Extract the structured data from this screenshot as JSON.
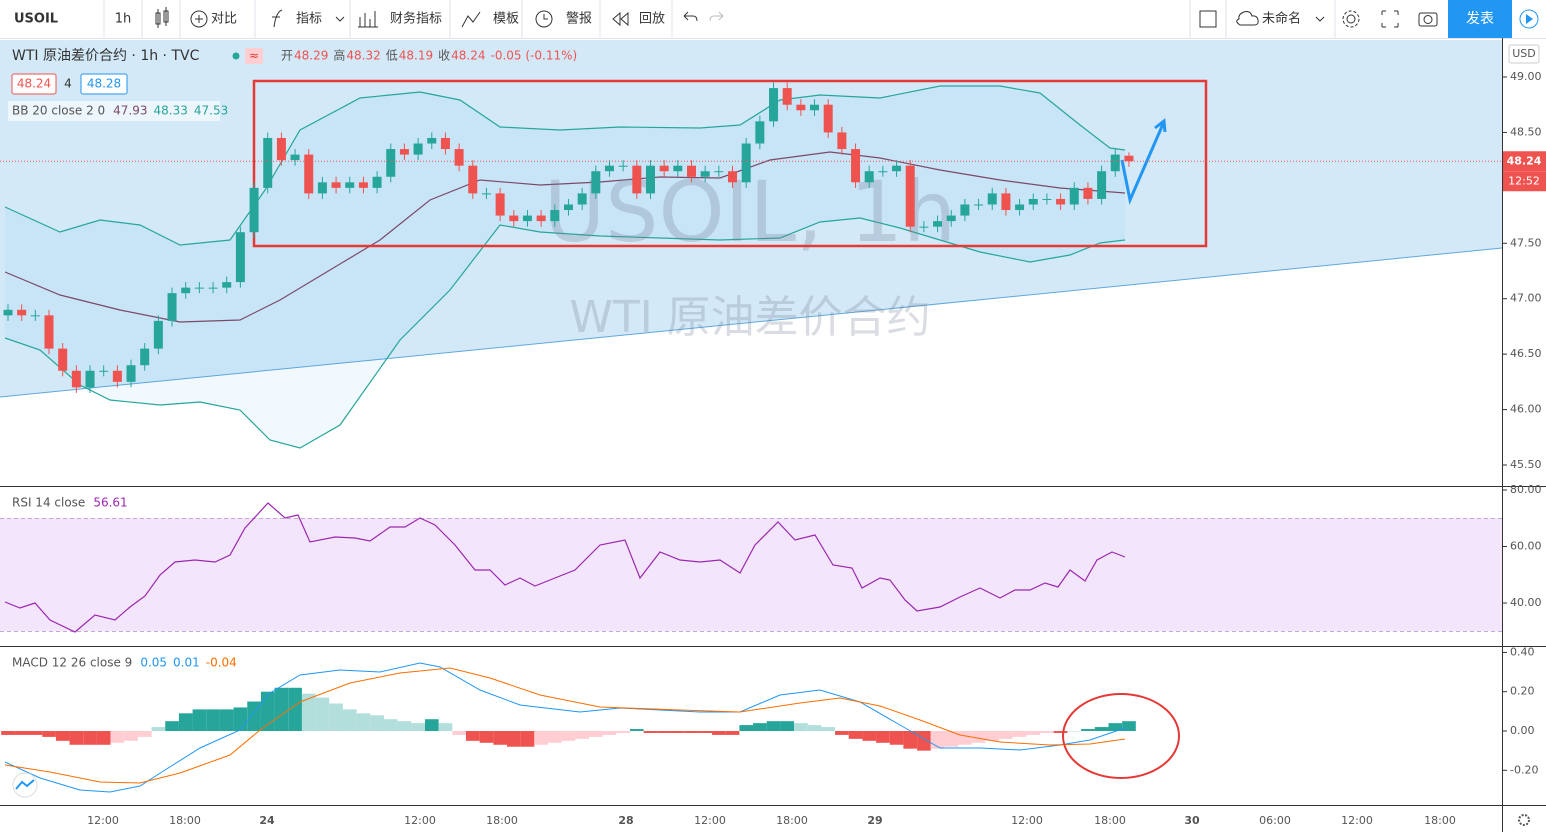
{
  "toolbar": {
    "symbol": "USOIL",
    "interval": "1h",
    "buttons": [
      "对比",
      "指标",
      "财务指标",
      "模板",
      "警报",
      "回放"
    ],
    "layout_name": "未命名",
    "publish": "发表"
  },
  "legend": {
    "title": "WTI 原油差价合约 · 1h · TVC",
    "ohlc": [
      {
        "label": "开",
        "value": 48.29
      },
      {
        "label": "高",
        "value": 48.32
      },
      {
        "label": "低",
        "value": 48.19
      },
      {
        "label": "收",
        "value": 48.24
      }
    ],
    "change": "-0.05 (-0.11%)",
    "bid": 48.24,
    "spread": 4,
    "ask": 48.28,
    "bb": {
      "name": "BB 20 close 2 0",
      "values": [
        47.93,
        48.33,
        47.53
      ]
    },
    "rsi": {
      "name": "RSI 14 close",
      "value": 56.61
    },
    "macd": {
      "name": "MACD 12 26 close 9",
      "values": [
        0.05,
        0.01,
        -0.04
      ]
    }
  },
  "chart": {
    "type": "candlestick",
    "open": [
      46.85,
      46.9,
      46.85,
      46.85,
      46.55,
      46.35,
      46.2,
      46.35,
      46.35,
      46.25,
      46.4,
      46.55,
      46.8,
      47.05,
      47.1,
      47.1,
      47.1,
      47.15,
      47.6,
      48.0,
      48.45,
      48.25,
      48.3,
      47.95,
      48.05,
      48.0,
      48.05,
      48.0,
      48.1,
      48.35,
      48.3,
      48.4,
      48.45,
      48.35,
      48.2,
      47.95,
      47.95,
      47.75,
      47.7,
      47.75,
      47.7,
      47.8,
      47.85,
      47.95,
      48.15,
      48.2,
      48.2,
      47.95,
      48.2,
      48.15,
      48.2,
      48.1,
      48.15,
      48.15,
      48.05,
      48.4,
      48.6,
      48.9,
      48.75,
      48.7,
      48.75,
      48.5,
      48.35,
      48.05,
      48.15,
      48.15,
      48.2,
      47.65,
      47.65,
      47.7,
      47.75,
      47.85,
      47.85,
      47.95,
      47.8,
      47.85,
      47.9,
      47.9,
      47.85,
      48.0,
      47.9,
      48.15,
      48.29
    ],
    "high": [
      46.95,
      46.95,
      46.9,
      46.9,
      46.6,
      46.4,
      46.4,
      46.4,
      46.4,
      46.45,
      46.6,
      46.85,
      47.1,
      47.15,
      47.15,
      47.15,
      47.2,
      47.65,
      48.05,
      48.5,
      48.5,
      48.35,
      48.35,
      48.1,
      48.1,
      48.1,
      48.1,
      48.15,
      48.4,
      48.4,
      48.45,
      48.5,
      48.5,
      48.4,
      48.25,
      48.0,
      48.0,
      47.8,
      47.8,
      47.8,
      47.85,
      47.9,
      48.0,
      48.2,
      48.25,
      48.25,
      48.25,
      48.25,
      48.25,
      48.25,
      48.25,
      48.2,
      48.2,
      48.2,
      48.45,
      48.65,
      48.95,
      48.95,
      48.8,
      48.8,
      48.8,
      48.55,
      48.4,
      48.2,
      48.2,
      48.25,
      48.25,
      47.7,
      47.75,
      47.8,
      47.9,
      47.9,
      48.0,
      48.0,
      47.9,
      47.95,
      47.95,
      47.95,
      48.05,
      48.05,
      48.2,
      48.35,
      48.32
    ],
    "low": [
      46.8,
      46.8,
      46.8,
      46.5,
      46.3,
      46.15,
      46.15,
      46.3,
      46.2,
      46.2,
      46.35,
      46.5,
      46.75,
      47.0,
      47.05,
      47.05,
      47.05,
      47.1,
      47.55,
      47.95,
      48.2,
      48.2,
      47.9,
      47.9,
      47.95,
      47.95,
      47.95,
      47.95,
      48.05,
      48.25,
      48.25,
      48.35,
      48.3,
      48.15,
      47.9,
      47.9,
      47.7,
      47.65,
      47.65,
      47.65,
      47.65,
      47.75,
      47.8,
      47.9,
      48.1,
      48.15,
      47.9,
      47.9,
      48.1,
      48.1,
      48.05,
      48.05,
      48.1,
      48.0,
      48.0,
      48.35,
      48.55,
      48.7,
      48.65,
      48.65,
      48.45,
      48.3,
      48.0,
      48.0,
      48.1,
      48.1,
      47.6,
      47.6,
      47.6,
      47.65,
      47.7,
      47.8,
      47.8,
      47.75,
      47.75,
      47.8,
      47.85,
      47.8,
      47.8,
      47.85,
      47.85,
      48.1,
      48.19
    ],
    "close": [
      46.9,
      46.85,
      46.85,
      46.55,
      46.35,
      46.2,
      46.35,
      46.35,
      46.25,
      46.4,
      46.55,
      46.8,
      47.05,
      47.1,
      47.1,
      47.1,
      47.15,
      47.6,
      48.0,
      48.45,
      48.25,
      48.3,
      47.95,
      48.05,
      48.0,
      48.05,
      48.0,
      48.1,
      48.35,
      48.3,
      48.4,
      48.45,
      48.35,
      48.2,
      47.95,
      47.95,
      47.75,
      47.7,
      47.75,
      47.7,
      47.8,
      47.85,
      47.95,
      48.15,
      48.2,
      48.2,
      47.95,
      48.2,
      48.15,
      48.2,
      48.1,
      48.15,
      48.15,
      48.05,
      48.4,
      48.6,
      48.9,
      48.75,
      48.7,
      48.75,
      48.5,
      48.35,
      48.05,
      48.15,
      48.15,
      48.2,
      47.65,
      47.65,
      47.7,
      47.75,
      47.85,
      47.85,
      47.95,
      47.8,
      47.85,
      47.9,
      47.9,
      47.85,
      48.0,
      47.9,
      48.15,
      48.3,
      48.24
    ],
    "macd_histogram": [
      -0.02,
      -0.02,
      -0.02,
      -0.03,
      -0.05,
      -0.07,
      -0.07,
      -0.07,
      -0.06,
      -0.05,
      -0.03,
      0.02,
      0.05,
      0.09,
      0.11,
      0.11,
      0.11,
      0.12,
      0.15,
      0.2,
      0.22,
      0.22,
      0.19,
      0.17,
      0.14,
      0.11,
      0.09,
      0.08,
      0.06,
      0.05,
      0.04,
      0.06,
      0.04,
      -0.02,
      -0.05,
      -0.06,
      -0.07,
      -0.08,
      -0.08,
      -0.07,
      -0.06,
      -0.05,
      -0.04,
      -0.03,
      -0.02,
      -0.01,
      0.01,
      -0.01,
      -0.01,
      -0.01,
      -0.01,
      -0.01,
      -0.02,
      -0.02,
      0.03,
      0.04,
      0.05,
      0.05,
      0.04,
      0.03,
      0.02,
      -0.02,
      -0.04,
      -0.05,
      -0.06,
      -0.07,
      -0.09,
      -0.1,
      -0.09,
      -0.08,
      -0.07,
      -0.06,
      -0.05,
      -0.04,
      -0.03,
      -0.02,
      -0.01,
      -0.01,
      0,
      0.01,
      0.02,
      0.04,
      0.05
    ],
    "price_ticks": [
      {
        "value": 49,
        "label": "49.00"
      },
      {
        "value": 48.5,
        "label": "48.50"
      },
      {
        "value": 47.5,
        "label": "47.50"
      },
      {
        "value": 47,
        "label": "47.00"
      },
      {
        "value": 46.5,
        "label": "46.50"
      },
      {
        "value": 46,
        "label": "46.00"
      },
      {
        "value": 45.5,
        "label": "45.50"
      }
    ],
    "rsi_ticks": [
      {
        "value": 80,
        "label": "80.00"
      },
      {
        "value": 60,
        "label": "60.00"
      },
      {
        "value": 40,
        "label": "40.00"
      }
    ],
    "macd_ticks": [
      {
        "value": 0.4,
        "label": "0.40"
      },
      {
        "value": 0.2,
        "label": "0.20"
      },
      {
        "value": 0,
        "label": "0.00"
      },
      {
        "value": -0.2,
        "label": "-0.20"
      }
    ],
    "time_labels": [
      "12:00",
      "18:00",
      "24",
      "12:00",
      "18:00",
      "28",
      "12:00",
      "18:00",
      "29",
      "12:00",
      "18:00",
      "30",
      "06:00",
      "12:00",
      "18:00"
    ],
    "last_price": 48.24,
    "countdown": "12:52",
    "currency": "USD",
    "watermark": "USOIL, 1h",
    "watermark_name": "WTI 原油差价合约"
  }
}
